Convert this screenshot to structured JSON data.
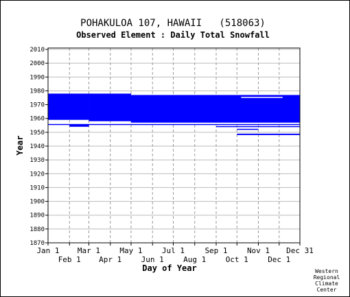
{
  "chart_data": {
    "type": "bar",
    "title": "POHAKULOA 107, HAWAII   (518063)",
    "subtitle": "Observed Element : Daily Total Snowfall",
    "xlabel": "Day of Year",
    "ylabel": "Year",
    "x_range_days": [
      1,
      365
    ],
    "ylim": [
      1870,
      2011
    ],
    "y_ticks": [
      2010,
      2000,
      1990,
      1980,
      1970,
      1960,
      1950,
      1940,
      1930,
      1920,
      1910,
      1900,
      1890,
      1880,
      1870
    ],
    "x_ticks_upper": [
      {
        "label": "Jan 1",
        "day": 1
      },
      {
        "label": "Mar 1",
        "day": 60
      },
      {
        "label": "May 1",
        "day": 121
      },
      {
        "label": "Jul 1",
        "day": 182
      },
      {
        "label": "Sep 1",
        "day": 244
      },
      {
        "label": "Nov 1",
        "day": 305
      },
      {
        "label": "Dec 31",
        "day": 365
      }
    ],
    "x_ticks_lower": [
      {
        "label": "Feb 1",
        "day": 32
      },
      {
        "label": "Apr 1",
        "day": 91
      },
      {
        "label": "Jun 1",
        "day": 152
      },
      {
        "label": "Aug 1",
        "day": 213
      },
      {
        "label": "Oct 1",
        "day": 274
      },
      {
        "label": "Dec 1",
        "day": 335
      }
    ],
    "grid": true,
    "color": "#0000ff",
    "records": [
      {
        "day_start": 1,
        "day_end": 60,
        "year_start": 1959,
        "year_end": 1978
      },
      {
        "day_start": 60,
        "day_end": 121,
        "year_start": 1958,
        "year_end": 1978
      },
      {
        "day_start": 121,
        "day_end": 365,
        "year_start": 1957,
        "year_end": 1977
      },
      {
        "day_start": 1,
        "day_end": 365,
        "year_start": 1955.5,
        "year_end": 1956
      },
      {
        "day_start": 32,
        "day_end": 60,
        "year_start": 1954,
        "year_end": 1955.5
      },
      {
        "day_start": 244,
        "day_end": 365,
        "year_start": 1954,
        "year_end": 1954.5
      },
      {
        "day_start": 274,
        "day_end": 305,
        "year_start": 1952,
        "year_end": 1952.5
      },
      {
        "day_start": 274,
        "day_end": 365,
        "year_start": 1948,
        "year_end": 1949
      }
    ],
    "gaps": [
      {
        "day_start": 280,
        "day_end": 340,
        "year_start": 1975,
        "year_end": 1975.6
      }
    ]
  },
  "credit": [
    "Western",
    "Regional",
    "Climate",
    "Center"
  ]
}
